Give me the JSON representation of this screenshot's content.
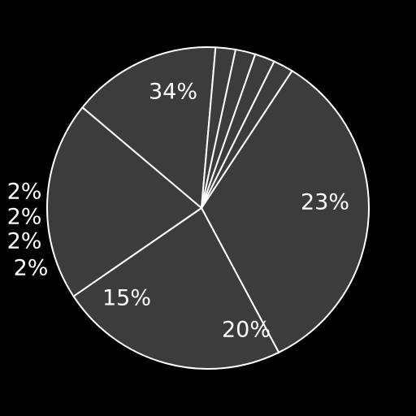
{
  "chart_data": {
    "type": "pie",
    "title": "",
    "categories": [
      "",
      "",
      "",
      "",
      "",
      "",
      "",
      ""
    ],
    "values": [
      34,
      23,
      20,
      15,
      2,
      2,
      2,
      2
    ],
    "labels": [
      "34%",
      "23%",
      "20%",
      "15%",
      "2%",
      "2%",
      "2%",
      "2%"
    ],
    "start_angle_deg": 301.5,
    "direction": "clockwise",
    "legend": "none",
    "colors": {
      "background": "#000000",
      "slice_fill": "#3c3c3c",
      "slice_stroke": "#ffffff",
      "label": "#ffffff"
    },
    "style": "hand-drawn"
  }
}
